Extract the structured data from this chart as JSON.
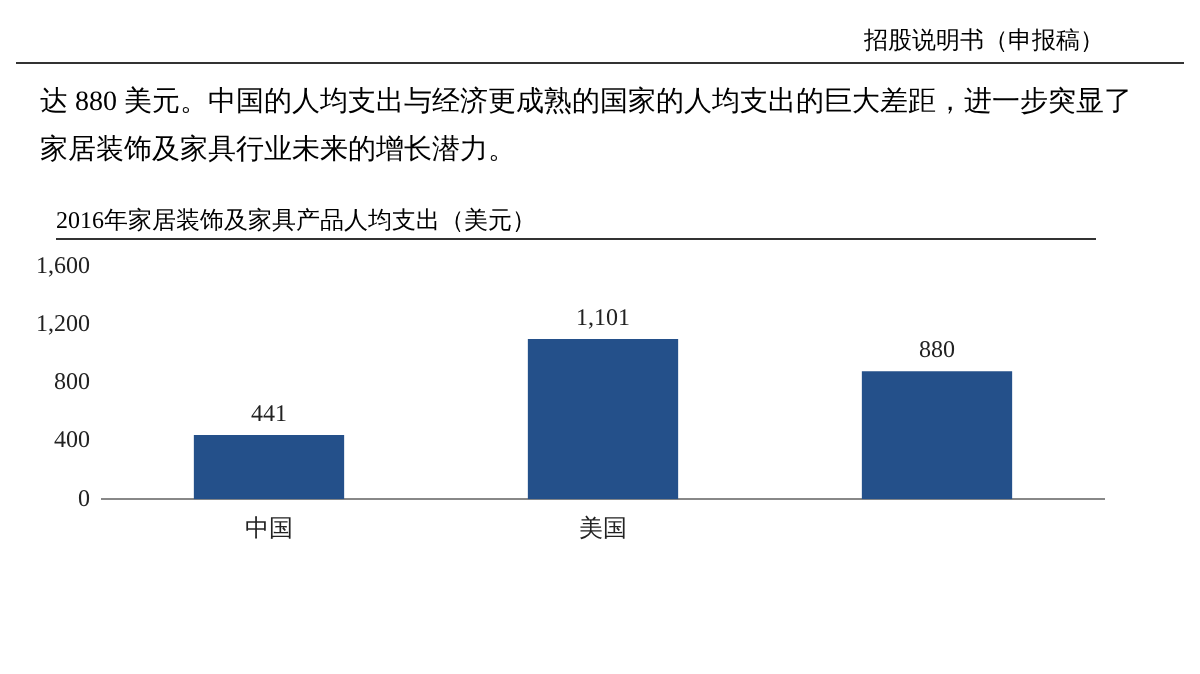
{
  "chart_data": {
    "type": "bar",
    "title": "2016年家居装饰及家具产品人均支出（美元）",
    "categories": [
      "中国",
      "美国",
      null
    ],
    "values": [
      441,
      1101,
      880
    ],
    "color": "#24508a",
    "ylim": [
      0,
      1600
    ],
    "yticks": [
      0,
      {
        "value": 400,
        "label": "400"
      },
      {
        "value": 800,
        "label": "800"
      },
      {
        "value": 1200,
        "label": "1,200"
      },
      {
        "value": 1600,
        "label": "1,600"
      }
    ],
    "data_labels": true,
    "value_labels": [
      "441",
      "1,101",
      "880"
    ],
    "grid": false,
    "legend": false,
    "annotations": [
      "招股说明书（申报稿）",
      "达 880 美元。中国的人均支出与经济更成熟的国家的人均支出的巨大差距，进一步突显了家居装饰及家具行业未来的增长潜力。"
    ]
  }
}
